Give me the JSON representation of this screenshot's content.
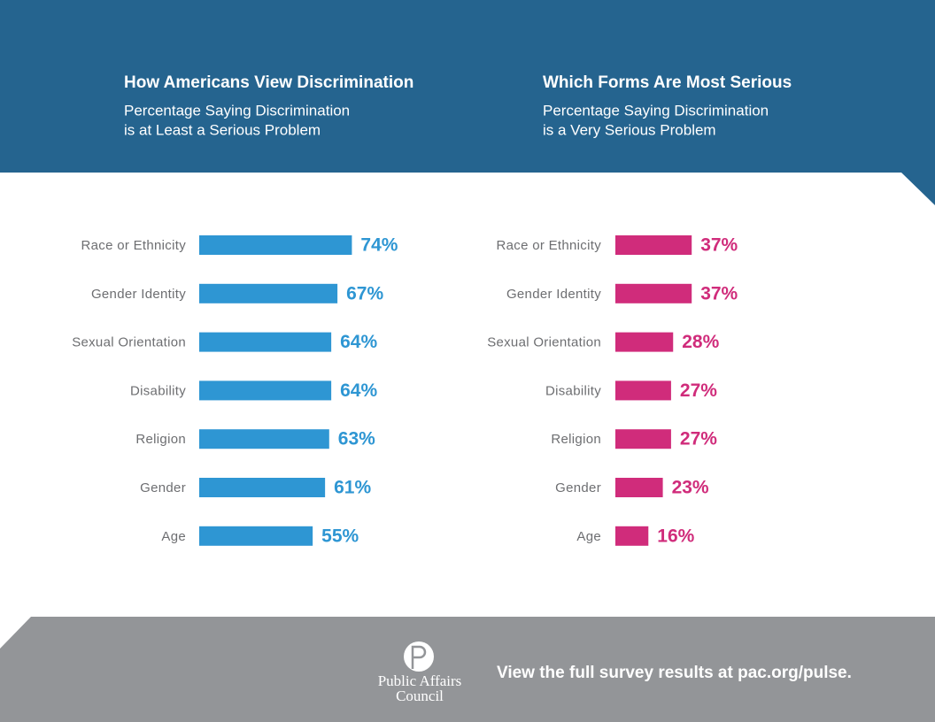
{
  "chart_data": [
    {
      "type": "bar",
      "orientation": "horizontal",
      "title": "How Americans View Discrimination",
      "subtitle": [
        "Percentage Saying Discrimination",
        "is at Least a Serious Problem"
      ],
      "categories": [
        "Race or Ethnicity",
        "Gender Identity",
        "Sexual Orientation",
        "Disability",
        "Religion",
        "Gender",
        "Age"
      ],
      "values": [
        74,
        67,
        64,
        64,
        63,
        61,
        55
      ],
      "value_labels": [
        "74%",
        "67%",
        "64%",
        "64%",
        "63%",
        "61%",
        "55%"
      ],
      "color": "#2e96d3"
    },
    {
      "type": "bar",
      "orientation": "horizontal",
      "title": "Which Forms Are Most Serious",
      "subtitle": [
        "Percentage Saying Discrimination",
        "is a Very Serious Problem"
      ],
      "categories": [
        "Race or Ethnicity",
        "Gender Identity",
        "Sexual Orientation",
        "Disability",
        "Religion",
        "Gender",
        "Age"
      ],
      "values": [
        37,
        37,
        28,
        27,
        27,
        23,
        16
      ],
      "value_labels": [
        "37%",
        "37%",
        "28%",
        "27%",
        "27%",
        "23%",
        "16%"
      ],
      "color": "#d02c7b"
    }
  ],
  "footer": {
    "logo": [
      "Public Affairs",
      "Council"
    ],
    "text": "View the full survey results at pac.org/pulse."
  }
}
